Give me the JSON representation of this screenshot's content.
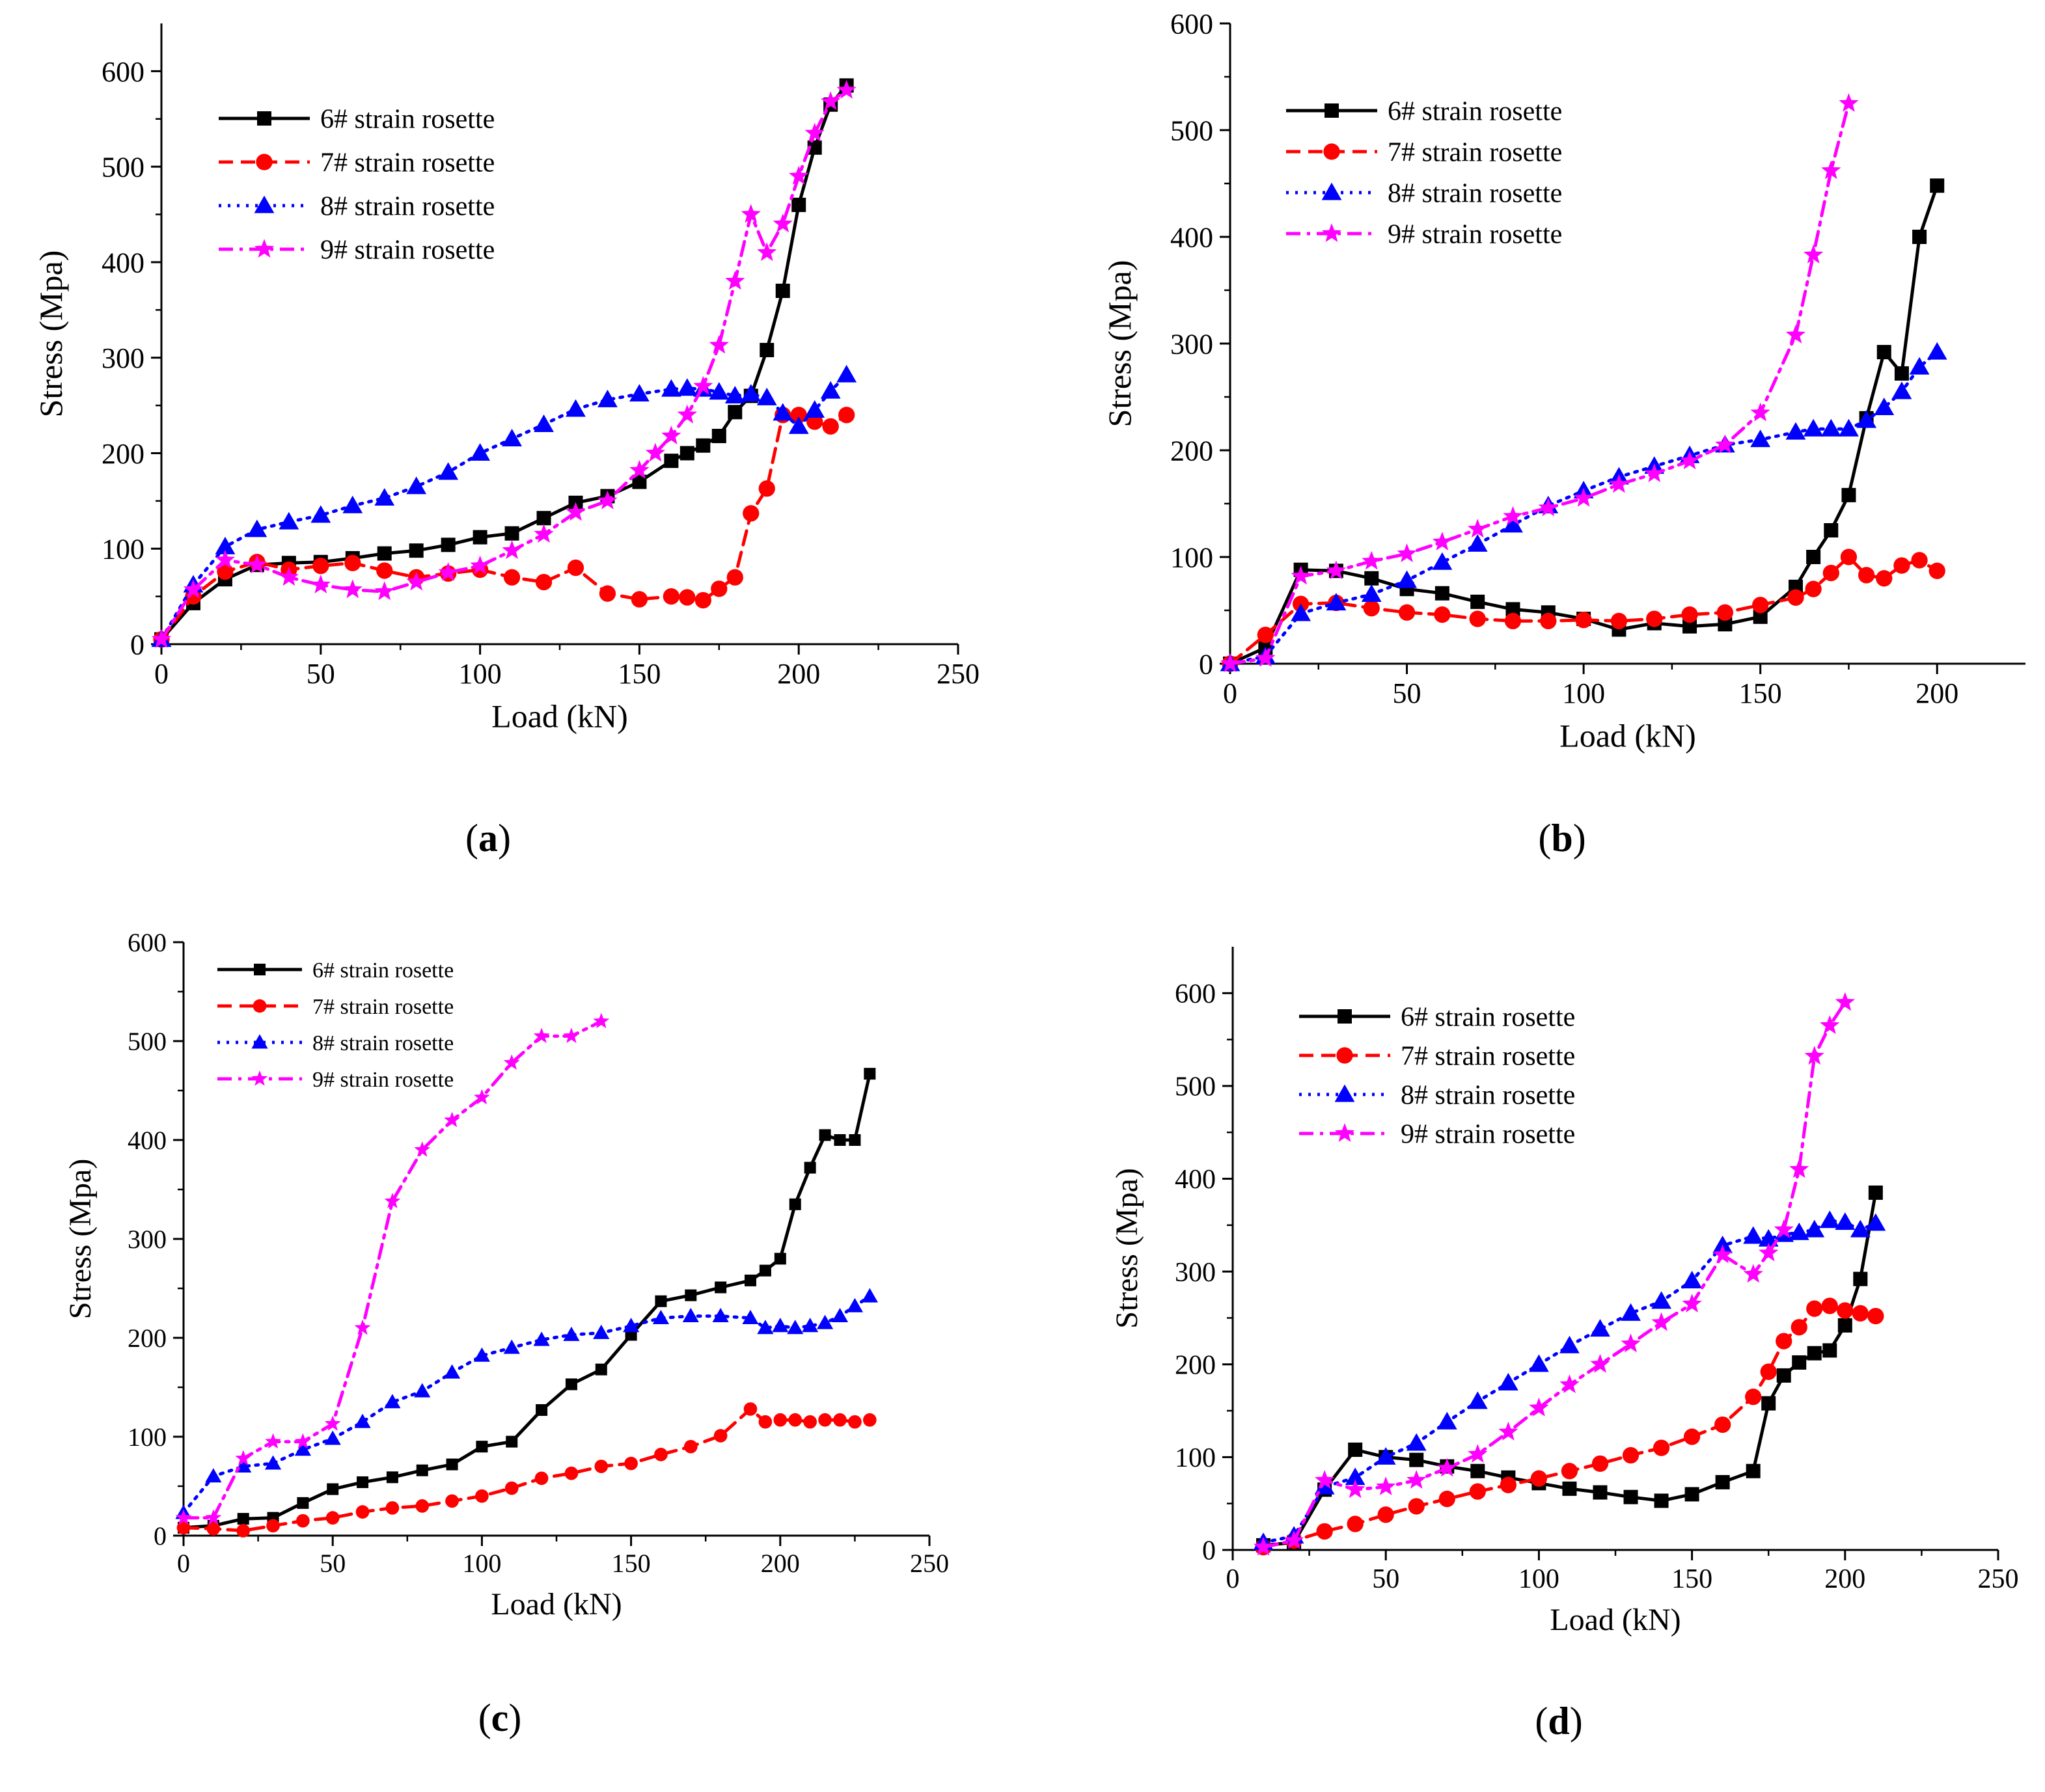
{
  "chart_data": [
    {
      "type": "line",
      "panel_label": "(a)",
      "xlabel": "Load (kN)",
      "ylabel": "Stress (Mpa)",
      "xlim": [
        0,
        250
      ],
      "ylim": [
        0,
        650
      ],
      "xticks": [
        0,
        50,
        100,
        150,
        200,
        250
      ],
      "yticks": [
        0,
        100,
        200,
        300,
        400,
        500,
        600
      ],
      "legend_position": "top-left",
      "series": [
        {
          "name": "6# strain rosette",
          "color": "#000000",
          "marker": "square",
          "dash": "solid",
          "x": [
            0,
            10,
            20,
            30,
            40,
            50,
            60,
            70,
            80,
            90,
            100,
            110,
            120,
            130,
            140,
            150,
            160,
            165,
            170,
            175,
            180,
            185,
            190,
            195,
            200,
            205,
            210,
            215
          ],
          "y": [
            5,
            43,
            68,
            83,
            85,
            86,
            90,
            95,
            98,
            104,
            112,
            116,
            132,
            148,
            155,
            170,
            192,
            200,
            208,
            218,
            243,
            260,
            308,
            370,
            460,
            520,
            565,
            585
          ]
        },
        {
          "name": "7# strain rosette",
          "color": "#ff0000",
          "marker": "circle",
          "dash": "dashed",
          "x": [
            0,
            10,
            20,
            30,
            40,
            50,
            60,
            70,
            80,
            90,
            100,
            110,
            120,
            130,
            140,
            150,
            160,
            165,
            170,
            175,
            180,
            185,
            190,
            195,
            200,
            205,
            210,
            215
          ],
          "y": [
            5,
            50,
            76,
            86,
            78,
            82,
            85,
            77,
            70,
            74,
            78,
            70,
            65,
            80,
            53,
            47,
            50,
            49,
            46,
            58,
            70,
            137,
            163,
            240,
            240,
            233,
            228,
            240
          ]
        },
        {
          "name": "8# strain rosette",
          "color": "#0000ff",
          "marker": "triangle",
          "dash": "dotted",
          "x": [
            0,
            10,
            20,
            30,
            40,
            50,
            60,
            70,
            80,
            90,
            100,
            110,
            120,
            130,
            140,
            150,
            160,
            165,
            170,
            175,
            180,
            185,
            190,
            195,
            200,
            205,
            210,
            215
          ],
          "y": [
            5,
            62,
            102,
            120,
            128,
            135,
            145,
            153,
            165,
            180,
            200,
            215,
            230,
            246,
            256,
            262,
            267,
            268,
            267,
            264,
            260,
            262,
            258,
            242,
            228,
            245,
            265,
            282
          ]
        },
        {
          "name": "9# strain rosette",
          "color": "#ff00ff",
          "marker": "star",
          "dash": "dashdot",
          "x": [
            0,
            10,
            20,
            30,
            40,
            50,
            60,
            70,
            80,
            90,
            100,
            110,
            120,
            130,
            140,
            150,
            155,
            160,
            165,
            170,
            175,
            180,
            185,
            190,
            195,
            200,
            205,
            210,
            215
          ],
          "y": [
            5,
            57,
            88,
            83,
            70,
            62,
            57,
            55,
            65,
            75,
            82,
            98,
            115,
            138,
            150,
            182,
            200,
            218,
            240,
            270,
            313,
            380,
            450,
            410,
            440,
            490,
            535,
            568,
            580
          ]
        }
      ]
    },
    {
      "type": "line",
      "panel_label": "(b)",
      "xlabel": "Load (kN)",
      "ylabel": "Stress (Mpa)",
      "xlim": [
        0,
        225
      ],
      "ylim": [
        0,
        600
      ],
      "xticks": [
        0,
        50,
        100,
        150,
        200
      ],
      "yticks": [
        0,
        100,
        200,
        300,
        400,
        500,
        600
      ],
      "legend_position": "top-left",
      "series": [
        {
          "name": "6# strain rosette",
          "color": "#000000",
          "marker": "square",
          "dash": "solid",
          "x": [
            0,
            10,
            20,
            30,
            40,
            50,
            60,
            70,
            80,
            90,
            100,
            110,
            120,
            130,
            140,
            150,
            160,
            165,
            170,
            175,
            180,
            185,
            190,
            195,
            200
          ],
          "y": [
            0,
            15,
            88,
            87,
            80,
            70,
            66,
            58,
            51,
            48,
            42,
            32,
            38,
            35,
            37,
            44,
            72,
            100,
            125,
            158,
            230,
            292,
            272,
            400,
            448
          ]
        },
        {
          "name": "7# strain rosette",
          "color": "#ff0000",
          "marker": "circle",
          "dash": "dashed",
          "x": [
            0,
            10,
            20,
            30,
            40,
            50,
            60,
            70,
            80,
            90,
            100,
            110,
            120,
            130,
            140,
            150,
            160,
            165,
            170,
            175,
            180,
            185,
            190,
            195,
            200
          ],
          "y": [
            0,
            27,
            56,
            57,
            52,
            48,
            46,
            42,
            40,
            40,
            41,
            40,
            42,
            46,
            48,
            55,
            62,
            70,
            85,
            100,
            83,
            80,
            92,
            97,
            87
          ]
        },
        {
          "name": "8# strain rosette",
          "color": "#0000ff",
          "marker": "triangle",
          "dash": "dotted",
          "x": [
            0,
            10,
            20,
            30,
            40,
            50,
            60,
            70,
            80,
            90,
            100,
            110,
            120,
            130,
            140,
            150,
            160,
            165,
            170,
            175,
            180,
            185,
            190,
            195,
            200
          ],
          "y": [
            0,
            7,
            47,
            57,
            65,
            78,
            95,
            112,
            130,
            148,
            162,
            175,
            185,
            195,
            205,
            210,
            217,
            220,
            220,
            220,
            228,
            240,
            255,
            278,
            292
          ]
        },
        {
          "name": "9# strain rosette",
          "color": "#ff00ff",
          "marker": "star",
          "dash": "dashdot",
          "x": [
            0,
            10,
            20,
            30,
            40,
            50,
            60,
            70,
            80,
            90,
            100,
            110,
            120,
            130,
            140,
            150,
            160,
            165,
            170,
            175
          ],
          "y": [
            0,
            5,
            82,
            87,
            96,
            103,
            114,
            126,
            138,
            146,
            155,
            168,
            178,
            190,
            205,
            235,
            308,
            383,
            462,
            525
          ]
        }
      ]
    },
    {
      "type": "line",
      "panel_label": "(c)",
      "xlabel": "Load (kN)",
      "ylabel": "Stress (Mpa)",
      "xlim": [
        0,
        250
      ],
      "ylim": [
        0,
        600
      ],
      "xticks": [
        0,
        50,
        100,
        150,
        200,
        250
      ],
      "yticks": [
        0,
        100,
        200,
        300,
        400,
        500,
        600
      ],
      "legend_position": "top-left",
      "series": [
        {
          "name": "6# strain rosette",
          "color": "#000000",
          "marker": "square",
          "dash": "solid",
          "x": [
            0,
            10,
            20,
            30,
            40,
            50,
            60,
            70,
            80,
            90,
            100,
            110,
            120,
            130,
            140,
            150,
            160,
            170,
            180,
            190,
            195,
            200,
            205,
            210,
            215,
            220,
            225,
            230
          ],
          "y": [
            8,
            10,
            17,
            18,
            33,
            47,
            54,
            59,
            66,
            72,
            90,
            95,
            127,
            153,
            168,
            203,
            237,
            243,
            251,
            258,
            268,
            280,
            335,
            372,
            405,
            400,
            400,
            467
          ]
        },
        {
          "name": "7# strain rosette",
          "color": "#ff0000",
          "marker": "circle",
          "dash": "dashed",
          "x": [
            0,
            10,
            20,
            30,
            40,
            50,
            60,
            70,
            80,
            90,
            100,
            110,
            120,
            130,
            140,
            150,
            160,
            170,
            180,
            190,
            195,
            200,
            205,
            210,
            215,
            220,
            225,
            230
          ],
          "y": [
            8,
            7,
            5,
            10,
            15,
            18,
            24,
            28,
            30,
            35,
            40,
            48,
            58,
            63,
            70,
            73,
            82,
            90,
            101,
            128,
            115,
            117,
            117,
            115,
            117,
            117,
            115,
            117
          ]
        },
        {
          "name": "8# strain rosette",
          "color": "#0000ff",
          "marker": "triangle",
          "dash": "dotted",
          "x": [
            0,
            10,
            20,
            30,
            40,
            50,
            60,
            70,
            80,
            90,
            100,
            110,
            120,
            130,
            140,
            150,
            160,
            170,
            180,
            190,
            195,
            200,
            205,
            210,
            215,
            220,
            225,
            230
          ],
          "y": [
            23,
            60,
            70,
            73,
            87,
            98,
            115,
            135,
            146,
            165,
            182,
            190,
            198,
            203,
            205,
            212,
            220,
            222,
            222,
            220,
            210,
            212,
            210,
            212,
            215,
            222,
            232,
            242
          ]
        },
        {
          "name": "9# strain rosette",
          "color": "#ff00ff",
          "marker": "star",
          "dash": "dashdot",
          "x": [
            0,
            10,
            20,
            30,
            40,
            50,
            60,
            70,
            80,
            90,
            100,
            110,
            120,
            130,
            140
          ],
          "y": [
            18,
            18,
            78,
            95,
            95,
            113,
            210,
            338,
            390,
            420,
            443,
            478,
            505,
            505,
            520
          ]
        }
      ]
    },
    {
      "type": "line",
      "panel_label": "(d)",
      "xlabel": "Load (kN)",
      "ylabel": "Stress (Mpa)",
      "xlim": [
        0,
        250
      ],
      "ylim": [
        0,
        650
      ],
      "xticks": [
        0,
        50,
        100,
        150,
        200,
        250
      ],
      "yticks": [
        0,
        100,
        200,
        300,
        400,
        500,
        600
      ],
      "legend_position": "top-left",
      "series": [
        {
          "name": "6# strain rosette",
          "color": "#000000",
          "marker": "square",
          "dash": "solid",
          "x": [
            10,
            20,
            30,
            40,
            50,
            60,
            70,
            80,
            90,
            100,
            110,
            120,
            130,
            140,
            150,
            160,
            170,
            175,
            180,
            185,
            190,
            195,
            200,
            205,
            210
          ],
          "y": [
            5,
            8,
            65,
            108,
            100,
            97,
            90,
            85,
            78,
            72,
            66,
            62,
            57,
            53,
            60,
            73,
            85,
            158,
            188,
            202,
            212,
            215,
            242,
            292,
            385
          ]
        },
        {
          "name": "7# strain rosette",
          "color": "#ff0000",
          "marker": "circle",
          "dash": "dashed",
          "x": [
            10,
            20,
            30,
            40,
            50,
            60,
            70,
            80,
            90,
            100,
            110,
            120,
            130,
            140,
            150,
            160,
            170,
            175,
            180,
            185,
            190,
            195,
            200,
            205,
            210
          ],
          "y": [
            3,
            10,
            20,
            28,
            38,
            47,
            55,
            63,
            70,
            77,
            85,
            93,
            102,
            110,
            122,
            135,
            165,
            192,
            225,
            240,
            260,
            263,
            258,
            255,
            252
          ]
        },
        {
          "name": "8# strain rosette",
          "color": "#0000ff",
          "marker": "triangle",
          "dash": "dotted",
          "x": [
            10,
            20,
            30,
            40,
            50,
            60,
            70,
            80,
            90,
            100,
            110,
            120,
            130,
            140,
            150,
            160,
            170,
            175,
            180,
            185,
            190,
            195,
            200,
            205,
            210
          ],
          "y": [
            8,
            15,
            68,
            78,
            100,
            115,
            138,
            160,
            180,
            200,
            220,
            238,
            255,
            268,
            290,
            328,
            338,
            335,
            340,
            342,
            345,
            355,
            353,
            345,
            352
          ]
        },
        {
          "name": "9# strain rosette",
          "color": "#ff00ff",
          "marker": "star",
          "dash": "dashdot",
          "x": [
            10,
            20,
            30,
            40,
            50,
            60,
            70,
            80,
            90,
            100,
            110,
            120,
            130,
            140,
            150,
            160,
            170,
            175,
            180,
            185,
            190,
            195,
            200
          ],
          "y": [
            3,
            10,
            75,
            65,
            68,
            75,
            88,
            103,
            127,
            153,
            178,
            200,
            222,
            245,
            265,
            318,
            297,
            320,
            345,
            410,
            532,
            565,
            590
          ]
        }
      ]
    }
  ]
}
